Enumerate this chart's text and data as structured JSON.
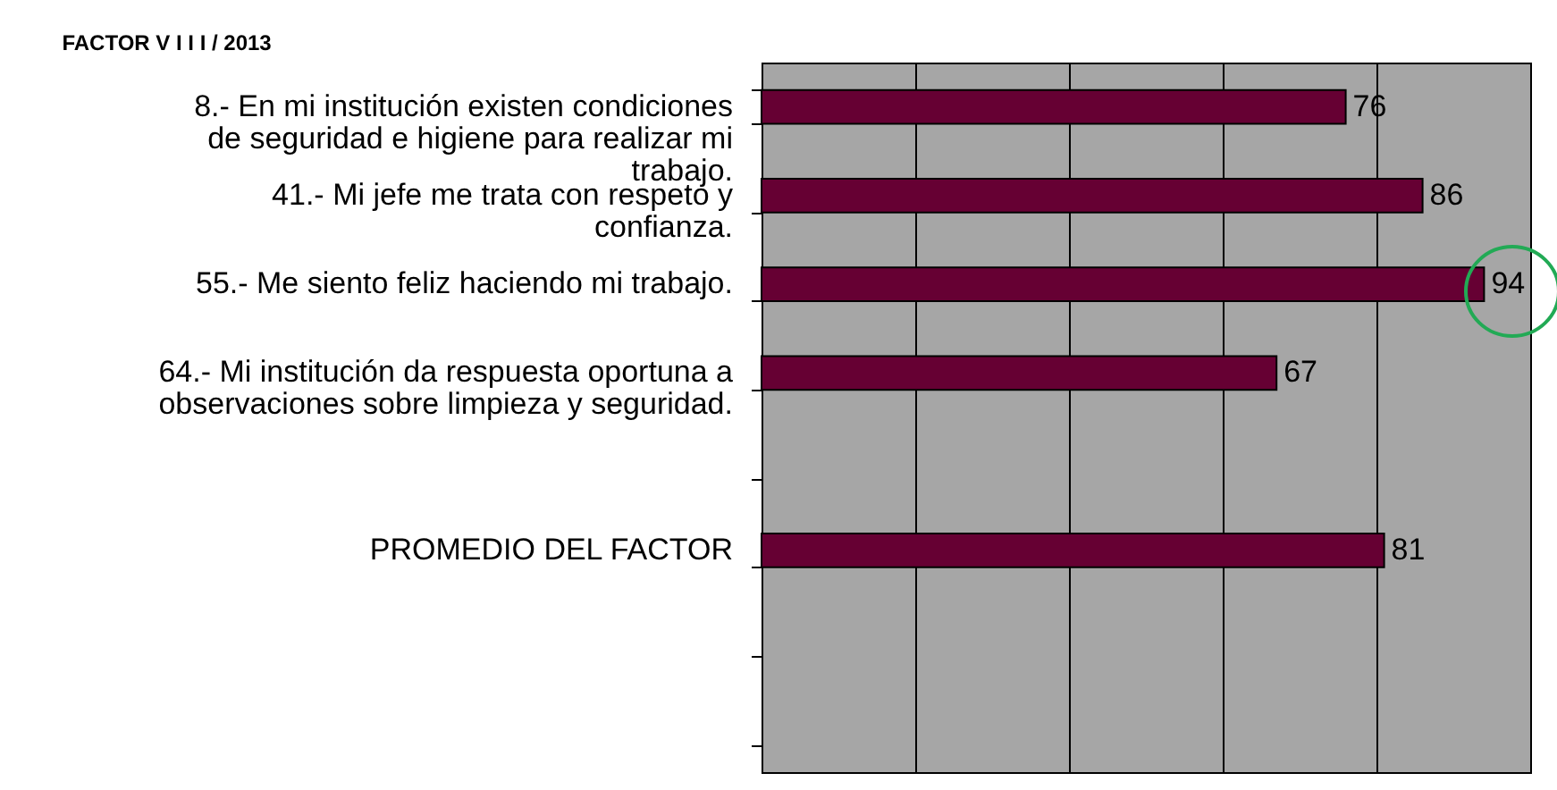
{
  "chart_data": {
    "type": "bar",
    "orientation": "horizontal",
    "title": "FACTOR   V I I I    /    2013",
    "categories": [
      "8.- En mi institución existen condiciones de seguridad e higiene para realizar mi trabajo.",
      "41.- Mi jefe me trata con respeto y confianza.",
      "55.- Me siento feliz haciendo mi trabajo.",
      "64.- Mi institución da respuesta oportuna a observaciones sobre limpieza y seguridad.",
      null,
      "PROMEDIO DEL FACTOR",
      null,
      null
    ],
    "values": [
      76,
      86,
      94,
      67,
      null,
      81,
      null,
      null
    ],
    "color": "#660033",
    "xlim": [
      0,
      100
    ],
    "xticks": [
      {
        "value": 0,
        "label": null
      },
      {
        "value": 20,
        "label": null
      },
      {
        "value": 40,
        "label": null
      },
      {
        "value": 60,
        "label": null
      },
      {
        "value": 80,
        "label": null
      },
      {
        "value": 100,
        "label": null
      }
    ],
    "grid": "x",
    "tick_labels": "y",
    "data_labels": true
  }
}
